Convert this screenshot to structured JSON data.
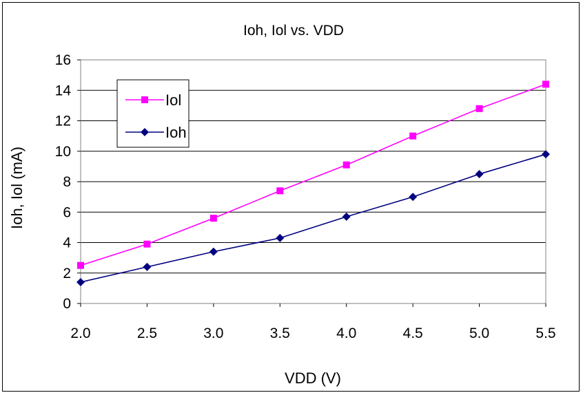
{
  "chart_data": {
    "type": "line",
    "title": "Ioh, Iol vs. VDD",
    "xlabel": "VDD (V)",
    "ylabel": "Ioh, Iol (mA)",
    "x": [
      2.0,
      2.5,
      3.0,
      3.5,
      4.0,
      4.5,
      5.0,
      5.5
    ],
    "x_tick_labels": [
      "2.0",
      "2.5",
      "3.0",
      "3.5",
      "4.0",
      "4.5",
      "5.0",
      "5.5"
    ],
    "ylim": [
      0,
      16
    ],
    "y_ticks": [
      0,
      2,
      4,
      6,
      8,
      10,
      12,
      14,
      16
    ],
    "grid": "horizontal",
    "legend_position": "top-left",
    "series": [
      {
        "name": "Iol",
        "color": "#ff00ff",
        "marker": "square",
        "values": [
          2.5,
          3.9,
          5.6,
          7.4,
          9.1,
          11.0,
          12.8,
          14.4
        ]
      },
      {
        "name": "Ioh",
        "color": "#000080",
        "marker": "diamond",
        "values": [
          1.4,
          2.4,
          3.4,
          4.3,
          5.7,
          7.0,
          8.5,
          9.8
        ]
      }
    ]
  }
}
